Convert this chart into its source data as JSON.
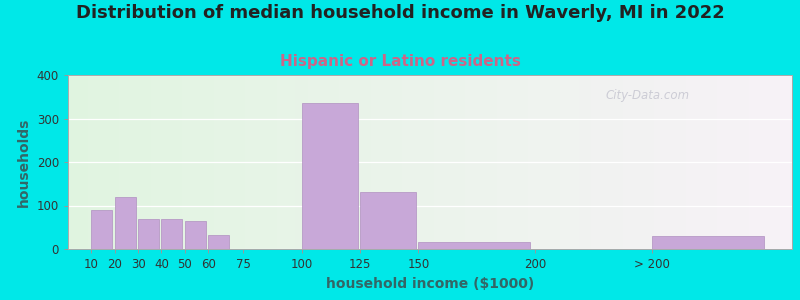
{
  "title": "Distribution of median household income in Waverly, MI in 2022",
  "subtitle": "Hispanic or Latino residents",
  "xlabel": "household income ($1000)",
  "ylabel": "households",
  "bar_color": "#c8a8d8",
  "bar_edgecolor": "#b090c0",
  "background_outer": "#00e8e8",
  "ylim": [
    0,
    400
  ],
  "yticks": [
    0,
    100,
    200,
    300,
    400
  ],
  "categories": [
    "10",
    "20",
    "30",
    "40",
    "50",
    "60",
    "75",
    "100",
    "125",
    "150",
    "200",
    "> 200"
  ],
  "values": [
    90,
    120,
    70,
    70,
    65,
    33,
    0,
    335,
    130,
    15,
    0,
    30
  ],
  "bar_positions": [
    10,
    20,
    30,
    40,
    50,
    60,
    75,
    100,
    125,
    150,
    200,
    250
  ],
  "bar_widths": [
    9,
    9,
    9,
    9,
    9,
    9,
    14,
    24,
    24,
    48,
    48,
    48
  ],
  "watermark": "City-Data.com",
  "title_fontsize": 13,
  "subtitle_fontsize": 11,
  "subtitle_color": "#cc6688",
  "xlabel_fontsize": 10,
  "ylabel_fontsize": 10,
  "title_color": "#222222",
  "axis_label_color": "#336666"
}
